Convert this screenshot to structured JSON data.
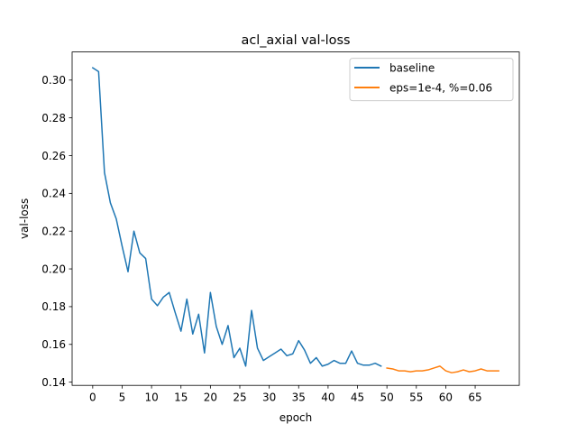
{
  "chart_data": {
    "type": "line",
    "title": "acl_axial val-loss",
    "xlabel": "epoch",
    "ylabel": "val-loss",
    "xlim": [
      -3.5,
      72.5
    ],
    "ylim": [
      0.1383,
      0.3149
    ],
    "xticks": [
      0,
      5,
      10,
      15,
      20,
      25,
      30,
      35,
      40,
      45,
      50,
      55,
      60,
      65
    ],
    "yticks": [
      0.14,
      0.16,
      0.18,
      0.2,
      0.22,
      0.24,
      0.26,
      0.28,
      0.3
    ],
    "ytick_labels": [
      "0.14",
      "0.16",
      "0.18",
      "0.20",
      "0.22",
      "0.24",
      "0.26",
      "0.28",
      "0.30"
    ],
    "grid": false,
    "legend_position": "top-right",
    "series": [
      {
        "name": "baseline",
        "color": "#1f77b4",
        "x": [
          0,
          1,
          2,
          3,
          4,
          5,
          6,
          7,
          8,
          9,
          10,
          11,
          12,
          13,
          14,
          15,
          16,
          17,
          18,
          19,
          20,
          21,
          22,
          23,
          24,
          25,
          26,
          27,
          28,
          29,
          30,
          31,
          32,
          33,
          34,
          35,
          36,
          37,
          38,
          39,
          40,
          41,
          42,
          43,
          44,
          45,
          46,
          47,
          48,
          49
        ],
        "values": [
          0.3065,
          0.3045,
          0.251,
          0.235,
          0.2265,
          0.212,
          0.1985,
          0.22,
          0.2085,
          0.2055,
          0.184,
          0.1805,
          0.185,
          0.1875,
          0.177,
          0.167,
          0.184,
          0.1655,
          0.176,
          0.1555,
          0.1875,
          0.1695,
          0.16,
          0.17,
          0.153,
          0.158,
          0.1485,
          0.178,
          0.158,
          0.1515,
          0.1535,
          0.1555,
          0.1575,
          0.154,
          0.155,
          0.162,
          0.157,
          0.15,
          0.153,
          0.1485,
          0.1495,
          0.1515,
          0.15,
          0.15,
          0.1565,
          0.15,
          0.149,
          0.149,
          0.15,
          0.1485
        ]
      },
      {
        "name": "eps=1e-4, %=0.06",
        "color": "#ff7f0e",
        "x": [
          50,
          51,
          52,
          53,
          54,
          55,
          56,
          57,
          58,
          59,
          60,
          61,
          62,
          63,
          64,
          65,
          66,
          67,
          68,
          69
        ],
        "values": [
          0.1475,
          0.147,
          0.146,
          0.146,
          0.1455,
          0.146,
          0.146,
          0.1465,
          0.1475,
          0.1485,
          0.146,
          0.145,
          0.1455,
          0.1465,
          0.1455,
          0.146,
          0.147,
          0.146,
          0.146,
          0.146
        ]
      }
    ]
  }
}
